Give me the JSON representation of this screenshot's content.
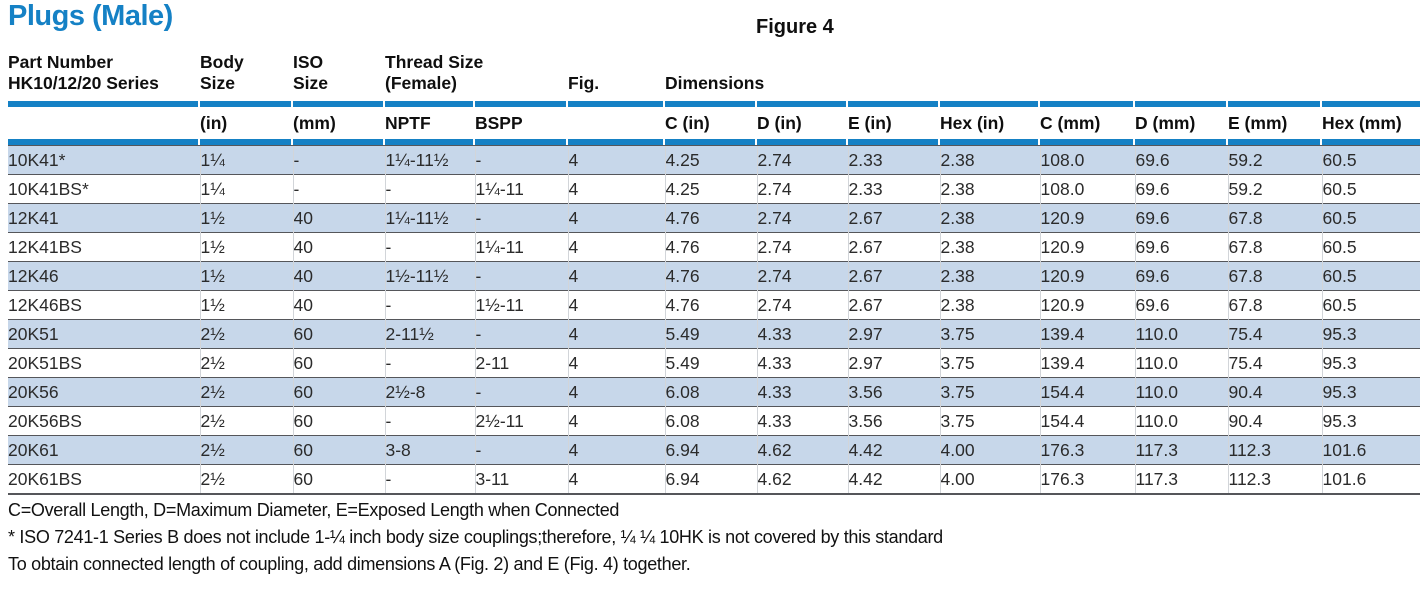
{
  "page": {
    "title": "Plugs (Male)",
    "figure_label": "Figure 4"
  },
  "table": {
    "header": {
      "part_number": [
        "Part Number",
        "HK10/12/20 Series"
      ],
      "body_size": [
        "Body",
        "Size"
      ],
      "iso_size": [
        "ISO",
        "Size"
      ],
      "thread_size": [
        "Thread Size",
        "(Female)"
      ],
      "fig": "Fig.",
      "dimensions": "Dimensions"
    },
    "subheaders": [
      "",
      "(in)",
      "(mm)",
      "NPTF",
      "BSPP",
      "",
      "C (in)",
      "D (in)",
      "E (in)",
      "Hex (in)",
      "C (mm)",
      "D (mm)",
      "E (mm)",
      "Hex (mm)"
    ],
    "rows": [
      [
        "10K41*",
        "1¼",
        "-",
        "1¼-11½",
        "-",
        "4",
        "4.25",
        "2.74",
        "2.33",
        "2.38",
        "108.0",
        "69.6",
        "59.2",
        "60.5"
      ],
      [
        "10K41BS*",
        "1¼",
        "-",
        "-",
        "1¼-11",
        "4",
        "4.25",
        "2.74",
        "2.33",
        "2.38",
        "108.0",
        "69.6",
        "59.2",
        "60.5"
      ],
      [
        "12K41",
        "1½",
        "40",
        "1¼-11½",
        "-",
        "4",
        "4.76",
        "2.74",
        "2.67",
        "2.38",
        "120.9",
        "69.6",
        "67.8",
        "60.5"
      ],
      [
        "12K41BS",
        "1½",
        "40",
        "-",
        "1¼-11",
        "4",
        "4.76",
        "2.74",
        "2.67",
        "2.38",
        "120.9",
        "69.6",
        "67.8",
        "60.5"
      ],
      [
        "12K46",
        "1½",
        "40",
        "1½-11½",
        "-",
        "4",
        "4.76",
        "2.74",
        "2.67",
        "2.38",
        "120.9",
        "69.6",
        "67.8",
        "60.5"
      ],
      [
        "12K46BS",
        "1½",
        "40",
        "-",
        "1½-11",
        "4",
        "4.76",
        "2.74",
        "2.67",
        "2.38",
        "120.9",
        "69.6",
        "67.8",
        "60.5"
      ],
      [
        "20K51",
        "2½",
        "60",
        "2-11½",
        "-",
        "4",
        "5.49",
        "4.33",
        "2.97",
        "3.75",
        "139.4",
        "110.0",
        "75.4",
        "95.3"
      ],
      [
        "20K51BS",
        "2½",
        "60",
        "-",
        "2-11",
        "4",
        "5.49",
        "4.33",
        "2.97",
        "3.75",
        "139.4",
        "110.0",
        "75.4",
        "95.3"
      ],
      [
        "20K56",
        "2½",
        "60",
        "2½-8",
        "-",
        "4",
        "6.08",
        "4.33",
        "3.56",
        "3.75",
        "154.4",
        "110.0",
        "90.4",
        "95.3"
      ],
      [
        "20K56BS",
        "2½",
        "60",
        "-",
        "2½-11",
        "4",
        "6.08",
        "4.33",
        "3.56",
        "3.75",
        "154.4",
        "110.0",
        "90.4",
        "95.3"
      ],
      [
        "20K61",
        "2½",
        "60",
        "3-8",
        "-",
        "4",
        "6.94",
        "4.62",
        "4.42",
        "4.00",
        "176.3",
        "117.3",
        "112.3",
        "101.6"
      ],
      [
        "20K61BS",
        "2½",
        "60",
        "-",
        "3-11",
        "4",
        "6.94",
        "4.62",
        "4.42",
        "4.00",
        "176.3",
        "117.3",
        "112.3",
        "101.6"
      ]
    ]
  },
  "notes": [
    "C=Overall Length, D=Maximum Diameter, E=Exposed Length when Connected",
    "* ISO 7241-1 Series B does not include 1-¼ inch body size couplings;therefore, ¼ ¼ 10HK is not covered by this standard",
    "To obtain connected length of coupling, add dimensions A (Fig. 2) and E (Fig. 4) together."
  ],
  "colors": {
    "accent_blue": "#1581c5",
    "row_blue": "#c7d7ea",
    "row_line": "#55565a"
  }
}
